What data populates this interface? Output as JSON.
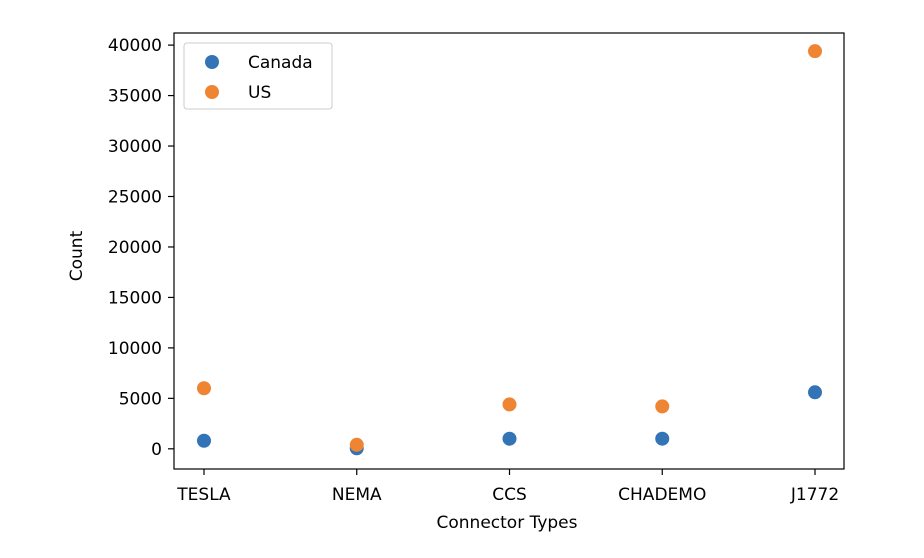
{
  "chart_data": {
    "type": "scatter",
    "title": "",
    "xlabel": "Connector Types",
    "ylabel": "Count",
    "categories": [
      "TESLA",
      "NEMA",
      "CCS",
      "CHADEMO",
      "J1772"
    ],
    "ylim": [
      -2000,
      41200
    ],
    "yticks": [
      0,
      5000,
      10000,
      15000,
      20000,
      25000,
      30000,
      35000,
      40000
    ],
    "grid": false,
    "legend_position": "top-left",
    "series": [
      {
        "name": "Canada",
        "color": "#3274b5",
        "values": [
          800,
          50,
          1000,
          1000,
          5600
        ]
      },
      {
        "name": "US",
        "color": "#ef8533",
        "values": [
          6000,
          400,
          4400,
          4200,
          39400
        ]
      }
    ]
  }
}
